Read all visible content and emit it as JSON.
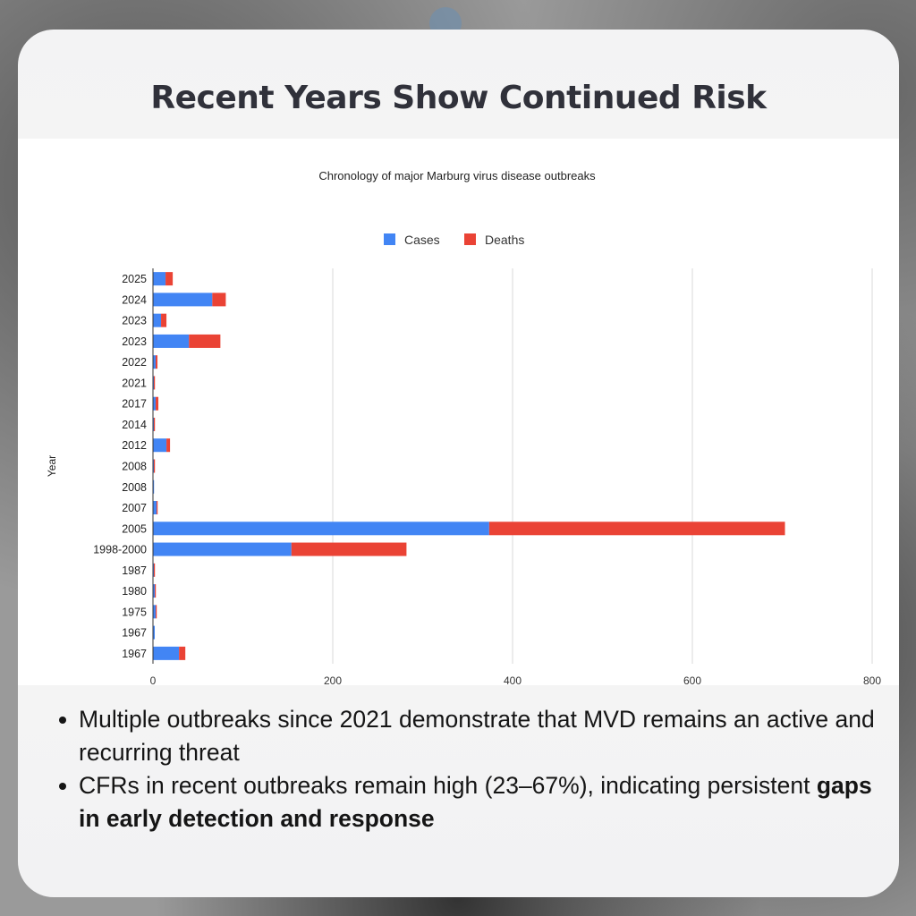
{
  "slide": {
    "title": "Recent Years Show Continued Risk",
    "bullets": [
      {
        "text": "Multiple outbreaks since 2021 demonstrate that MVD remains an active and recurring threat",
        "bold": ""
      },
      {
        "text": "CFRs in recent outbreaks remain high (23–67%), indicating persistent ",
        "bold": "gaps in early detection and response"
      }
    ]
  },
  "chart_data": {
    "type": "bar",
    "orientation": "horizontal",
    "stacked": true,
    "title": "Chronology of major Marburg virus disease outbreaks",
    "xlabel": "",
    "ylabel": "Year",
    "xlim": [
      0,
      800
    ],
    "xticks": [
      0,
      200,
      400,
      600,
      800
    ],
    "grid": true,
    "legend_position": "top",
    "categories": [
      "2025",
      "2024",
      "2023",
      "2023",
      "2022",
      "2021",
      "2017",
      "2014",
      "2012",
      "2008",
      "2008",
      "2007",
      "2005",
      "1998-2000",
      "1987",
      "1980",
      "1975",
      "1967",
      "1967"
    ],
    "series": [
      {
        "name": "Cases",
        "color": "#4285f4",
        "values": [
          14,
          66,
          9,
          40,
          3,
          1,
          3,
          1,
          15,
          1,
          1,
          4,
          374,
          154,
          1,
          2,
          3,
          2,
          29
        ]
      },
      {
        "name": "Deaths",
        "color": "#ea4335",
        "values": [
          8,
          15,
          6,
          35,
          2,
          1,
          3,
          1,
          4,
          1,
          0,
          1,
          329,
          128,
          1,
          1,
          1,
          0,
          7
        ]
      }
    ]
  }
}
